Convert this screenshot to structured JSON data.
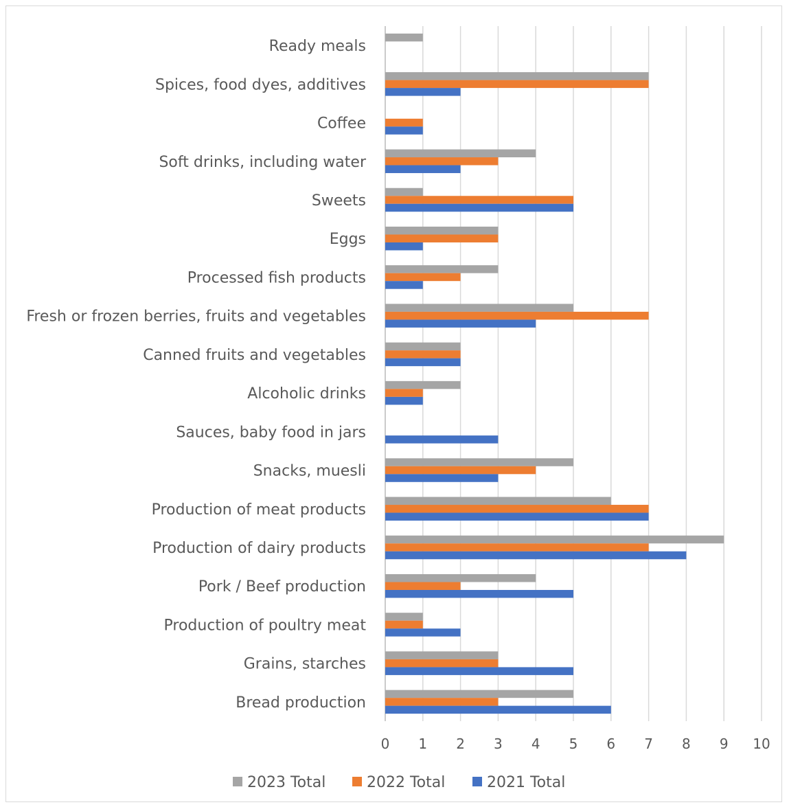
{
  "chart_data": {
    "type": "bar",
    "orientation": "horizontal",
    "categories": [
      "Ready meals",
      "Spices, food dyes, additives",
      "Coffee",
      "Soft drinks, including water",
      "Sweets",
      "Eggs",
      "Processed fish products",
      "Fresh or frozen berries, fruits and vegetables",
      "Canned fruits and vegetables",
      "Alcoholic drinks",
      "Sauces, baby food in jars",
      "Snacks, muesli",
      "Production of meat products",
      "Production of dairy products",
      "Pork / Beef production",
      "Production of poultry meat",
      "Grains, starches",
      "Bread production"
    ],
    "series": [
      {
        "name": "2023 Total",
        "color": "#a5a5a5",
        "values": [
          1,
          7,
          0,
          4,
          1,
          3,
          3,
          5,
          2,
          2,
          0,
          5,
          6,
          9,
          4,
          1,
          3,
          5
        ]
      },
      {
        "name": "2022 Total",
        "color": "#ed7d31",
        "values": [
          0,
          7,
          1,
          3,
          5,
          3,
          2,
          7,
          2,
          1,
          0,
          4,
          7,
          7,
          2,
          1,
          3,
          3
        ]
      },
      {
        "name": "2021 Total",
        "color": "#4472c4",
        "values": [
          0,
          2,
          1,
          2,
          5,
          1,
          1,
          4,
          2,
          1,
          3,
          3,
          7,
          8,
          5,
          2,
          5,
          6
        ]
      }
    ],
    "xlim": [
      0,
      10
    ],
    "x_ticks": [
      "0",
      "1",
      "2",
      "3",
      "4",
      "5",
      "6",
      "7",
      "8",
      "9",
      "10"
    ],
    "grid": true,
    "legend_placement": "bottom",
    "title": "",
    "xlabel": "",
    "ylabel": ""
  }
}
